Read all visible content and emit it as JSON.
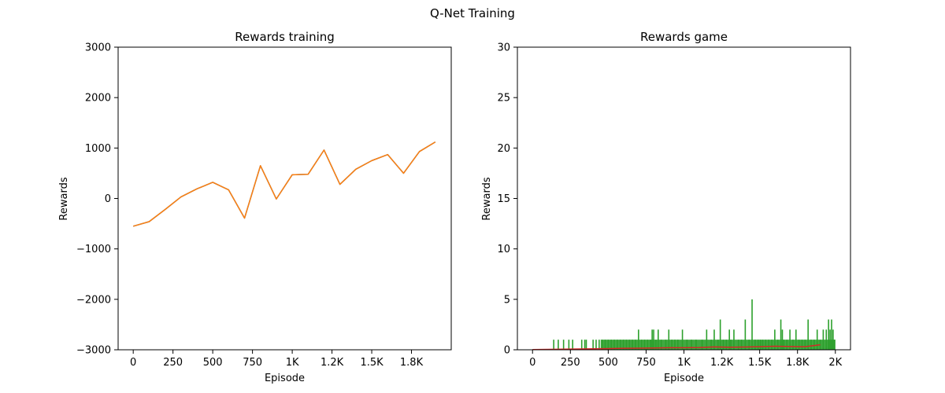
{
  "suptitle": "Q-Net Training",
  "chart_data": [
    {
      "type": "line",
      "title": "Rewards training",
      "xlabel": "Episode",
      "ylabel": "Rewards",
      "xlim": [
        -95,
        2000
      ],
      "ylim": [
        -3000,
        3000
      ],
      "xticks": [
        {
          "value": 0,
          "label": "0"
        },
        {
          "value": 250,
          "label": "250"
        },
        {
          "value": 500,
          "label": "500"
        },
        {
          "value": 750,
          "label": "750"
        },
        {
          "value": 1000,
          "label": "1K"
        },
        {
          "value": 1250,
          "label": "1.2K"
        },
        {
          "value": 1500,
          "label": "1.5K"
        },
        {
          "value": 1750,
          "label": "1.8K"
        }
      ],
      "yticks": [
        {
          "value": -3000,
          "label": "−3000"
        },
        {
          "value": -2000,
          "label": "−2000"
        },
        {
          "value": -1000,
          "label": "−1000"
        },
        {
          "value": 0,
          "label": "0"
        },
        {
          "value": 1000,
          "label": "1000"
        },
        {
          "value": 2000,
          "label": "2000"
        },
        {
          "value": 3000,
          "label": "3000"
        }
      ],
      "series": [
        {
          "color": "#1f77b4",
          "x": [
            0,
            100,
            200,
            300,
            400,
            500,
            600,
            700,
            800,
            900,
            1000,
            1100,
            1200,
            1300,
            1400,
            1500,
            1600,
            1700,
            1800,
            1900
          ],
          "y": [
            -550,
            -460,
            -220,
            30,
            190,
            320,
            170,
            -390,
            650,
            -10,
            470,
            480,
            960,
            280,
            580,
            750,
            870,
            500,
            930,
            1120
          ]
        },
        {
          "color": "#ff7f0e",
          "x": [
            0,
            100,
            200,
            300,
            400,
            500,
            600,
            700,
            800,
            900,
            1000,
            1100,
            1200,
            1300,
            1400,
            1500,
            1600,
            1700,
            1800,
            1900
          ],
          "y": [
            -550,
            -460,
            -220,
            30,
            190,
            320,
            170,
            -390,
            650,
            -10,
            470,
            480,
            960,
            280,
            580,
            750,
            870,
            500,
            930,
            1120
          ]
        }
      ]
    },
    {
      "type": "line",
      "title": "Rewards game",
      "xlabel": "Episode",
      "ylabel": "Rewards",
      "xlim": [
        -100,
        2100
      ],
      "ylim": [
        0,
        30
      ],
      "xticks": [
        {
          "value": 0,
          "label": "0"
        },
        {
          "value": 250,
          "label": "250"
        },
        {
          "value": 500,
          "label": "500"
        },
        {
          "value": 750,
          "label": "750"
        },
        {
          "value": 1000,
          "label": "1K"
        },
        {
          "value": 1250,
          "label": "1.2K"
        },
        {
          "value": 1500,
          "label": "1.5K"
        },
        {
          "value": 1750,
          "label": "1.8K"
        },
        {
          "value": 2000,
          "label": "2K"
        }
      ],
      "yticks": [
        {
          "value": 0,
          "label": "0"
        },
        {
          "value": 5,
          "label": "5"
        },
        {
          "value": 10,
          "label": "10"
        },
        {
          "value": 15,
          "label": "15"
        },
        {
          "value": 20,
          "label": "20"
        },
        {
          "value": 25,
          "label": "25"
        },
        {
          "value": 30,
          "label": "30"
        }
      ],
      "spikes": {
        "color": "#2ca02c",
        "x": [
          140,
          170,
          205,
          240,
          265,
          325,
          345,
          355,
          400,
          420,
          440,
          460,
          480,
          500,
          520,
          540,
          560,
          580,
          600,
          620,
          640,
          660,
          680,
          700,
          720,
          740,
          760,
          780,
          790,
          800,
          815,
          830,
          850,
          880,
          900,
          920,
          940,
          960,
          990,
          1020,
          1050,
          1080,
          1120,
          1150,
          1180,
          1200,
          1225,
          1240,
          1260,
          1280,
          1300,
          1310,
          1330,
          1360,
          1380,
          1405,
          1430,
          1450,
          1470,
          1490,
          1505,
          1520,
          1540,
          1560,
          1580,
          1600,
          1620,
          1640,
          1650,
          1660,
          1680,
          1700,
          1720,
          1740,
          1760,
          1780,
          1800,
          1820,
          1840,
          1860,
          1880,
          1900,
          1920,
          1940,
          1955,
          1965,
          1975,
          1985,
          1995
        ],
        "y": [
          1,
          1,
          1,
          1,
          1,
          1,
          1,
          1,
          1,
          1,
          1,
          1,
          1,
          1,
          1,
          1,
          1,
          1,
          1,
          1,
          1,
          1,
          1,
          2,
          1,
          1,
          1,
          1,
          2,
          2,
          1,
          2,
          1,
          1,
          2,
          1,
          1,
          1,
          2,
          1,
          1,
          1,
          1,
          2,
          1,
          2,
          1,
          3,
          1,
          1,
          2,
          1,
          2,
          1,
          1,
          3,
          1,
          5,
          1,
          1,
          1,
          1,
          1,
          1,
          1,
          2,
          1,
          3,
          2,
          1,
          1,
          2,
          1,
          2,
          1,
          1,
          1,
          3,
          1,
          1,
          2,
          1,
          2,
          2,
          3,
          2,
          3,
          2,
          1
        ]
      },
      "baseline_band": {
        "color": "#2ca02c",
        "from": 450,
        "to": 2000,
        "value": 1
      },
      "series": [
        {
          "color": "#d62728",
          "x": [
            0,
            100,
            200,
            300,
            400,
            500,
            600,
            700,
            800,
            900,
            1000,
            1100,
            1200,
            1300,
            1400,
            1500,
            1600,
            1700,
            1800,
            1900
          ],
          "y": [
            0.02,
            0.04,
            0.06,
            0.08,
            0.1,
            0.12,
            0.15,
            0.16,
            0.18,
            0.2,
            0.2,
            0.22,
            0.28,
            0.25,
            0.27,
            0.3,
            0.35,
            0.32,
            0.3,
            0.5
          ]
        }
      ]
    }
  ]
}
